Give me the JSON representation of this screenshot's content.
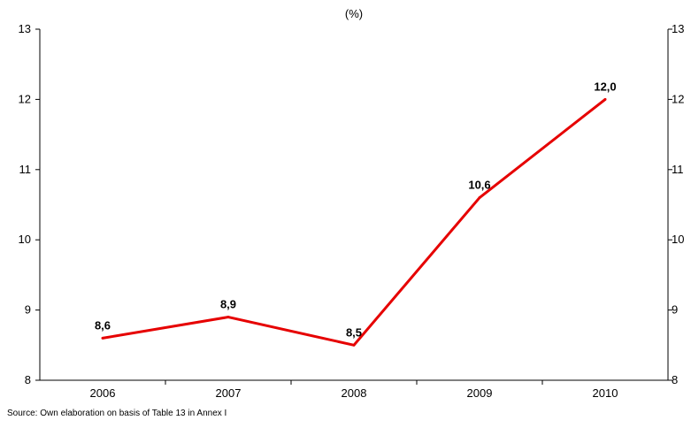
{
  "chart_data": {
    "type": "line",
    "title": "(%)",
    "categories": [
      "2006",
      "2007",
      "2008",
      "2009",
      "2010"
    ],
    "series": [
      {
        "values": [
          8.6,
          8.9,
          8.5,
          10.6,
          12.0
        ],
        "data_labels": [
          "8,6",
          "8,9",
          "8,5",
          "10,6",
          "12,0"
        ],
        "color": "#e60000"
      }
    ],
    "ylim": [
      8,
      13
    ],
    "yticks": [
      8,
      9,
      10,
      11,
      12,
      13
    ],
    "secondary_yticks": [
      "8",
      "9",
      "10",
      "11",
      "12",
      "13"
    ],
    "grid": false
  },
  "source_text": "Source: Own elaboration on basis of Table 13 in Annex I"
}
